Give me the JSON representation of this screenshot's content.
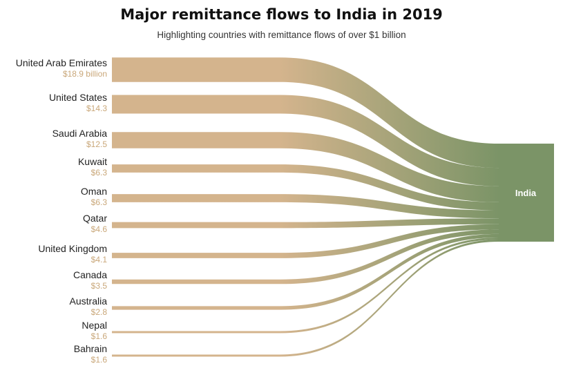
{
  "chart_data": {
    "type": "sankey",
    "title": "Major remittance flows to India in 2019",
    "subtitle": "Highlighting countries with remittance flows of over $1 billion",
    "target": "India",
    "unit": "USD billion",
    "sources": [
      {
        "name": "United Arab Emirates",
        "value": 18.9,
        "value_label": "$18.9 billion"
      },
      {
        "name": "United States",
        "value": 14.3,
        "value_label": "$14.3"
      },
      {
        "name": "Saudi Arabia",
        "value": 12.5,
        "value_label": "$12.5"
      },
      {
        "name": "Kuwait",
        "value": 6.3,
        "value_label": "$6.3"
      },
      {
        "name": "Oman",
        "value": 6.3,
        "value_label": "$6.3"
      },
      {
        "name": "Qatar",
        "value": 4.6,
        "value_label": "$4.6"
      },
      {
        "name": "United Kingdom",
        "value": 4.1,
        "value_label": "$4.1"
      },
      {
        "name": "Canada",
        "value": 3.5,
        "value_label": "$3.5"
      },
      {
        "name": "Australia",
        "value": 2.8,
        "value_label": "$2.8"
      },
      {
        "name": "Nepal",
        "value": 1.6,
        "value_label": "$1.6"
      },
      {
        "name": "Bahrain",
        "value": 1.6,
        "value_label": "$1.6"
      }
    ],
    "colors": {
      "source": "#d4b48d",
      "target": "#7b9467",
      "value_label": "#c9a779",
      "target_label": "#ffffff"
    }
  }
}
